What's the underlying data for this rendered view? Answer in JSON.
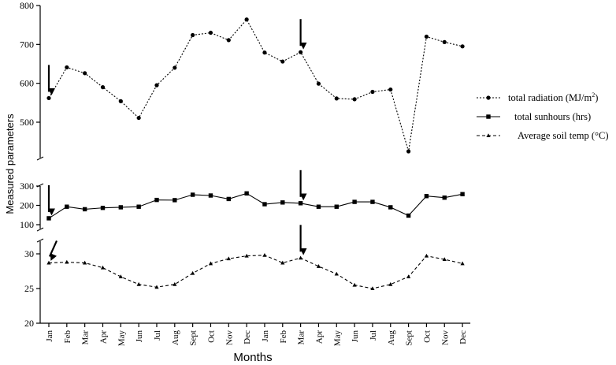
{
  "chart_data": {
    "type": "line",
    "categories": [
      "Jan",
      "Feb",
      "Mar",
      "Apr",
      "May",
      "Jun",
      "Jul",
      "Aug",
      "Sept",
      "Oct",
      "Nov",
      "Dec",
      "Jan",
      "Feb",
      "Mar",
      "Apr",
      "May",
      "Jun",
      "Jul",
      "Aug",
      "Sept",
      "Oct",
      "Nov",
      "Dec"
    ],
    "xlabel": "Months",
    "ylabel": "Measured parameters",
    "panels": [
      {
        "id": "radiation",
        "ylim": [
          400,
          800
        ],
        "ticks": [
          500,
          600,
          700,
          800
        ]
      },
      {
        "id": "sunhours",
        "ylim": [
          100,
          300
        ],
        "ticks": [
          100,
          200,
          300
        ]
      },
      {
        "id": "soiltemp",
        "ylim": [
          20,
          30
        ],
        "ticks": [
          20,
          25,
          30
        ]
      }
    ],
    "series": [
      {
        "name": "total radiation (MJ/m²)",
        "legend_prefix": "total radiation (MJ/m",
        "legend_sup": "2",
        "legend_suffix": ")",
        "panel": 0,
        "marker": "circle",
        "dash": "dotted",
        "values": [
          562,
          641,
          626,
          590,
          554,
          511,
          595,
          640,
          724,
          730,
          711,
          764,
          679,
          656,
          680,
          599,
          561,
          559,
          578,
          584,
          425,
          720,
          706,
          695
        ]
      },
      {
        "name": "total sunhours (hrs)",
        "panel": 1,
        "marker": "square",
        "dash": "solid",
        "values": [
          133,
          193,
          180,
          187,
          190,
          193,
          228,
          227,
          255,
          251,
          233,
          262,
          206,
          215,
          211,
          193,
          193,
          218,
          218,
          190,
          147,
          248,
          240,
          258
        ]
      },
      {
        "name": "Average soil temp (°C)",
        "panel": 2,
        "marker": "triangle",
        "dash": "dashed",
        "values": [
          28.7,
          28.8,
          28.7,
          28.0,
          26.7,
          25.6,
          25.2,
          25.6,
          27.2,
          28.6,
          29.3,
          29.7,
          29.8,
          28.7,
          29.4,
          28.2,
          27.1,
          25.5,
          25.0,
          25.6,
          26.7,
          29.7,
          29.2,
          28.6
        ]
      }
    ],
    "arrows": [
      {
        "panel": 0,
        "index": 0
      },
      {
        "panel": 0,
        "index": 14
      },
      {
        "panel": 1,
        "index": 0
      },
      {
        "panel": 1,
        "index": 14
      },
      {
        "panel": 2,
        "index": 0
      },
      {
        "panel": 2,
        "index": 14
      }
    ],
    "legend_position": "right"
  }
}
